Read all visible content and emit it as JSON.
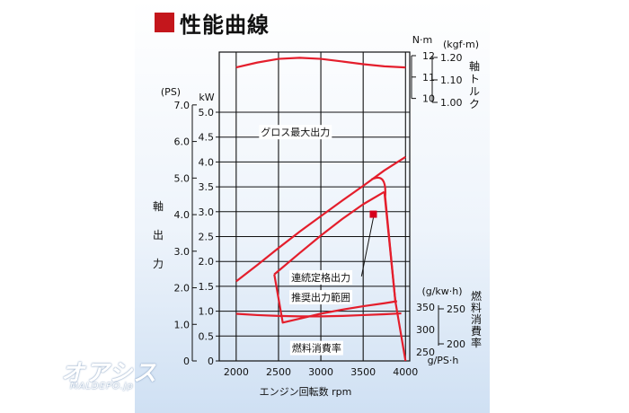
{
  "page_title": "性能曲線",
  "watermark": {
    "logo": "オアシス",
    "site": "MALDEPO.jp"
  },
  "chart_data": {
    "type": "line",
    "xlabel": "エンジン回転数 rpm",
    "xlim": [
      1800,
      4050
    ],
    "x_ticks": [
      2000,
      2500,
      3000,
      3500,
      4000
    ],
    "power_axis": {
      "ps_unit": "(PS)",
      "kw_unit": "kW",
      "label": "軸出力",
      "kw_range": [
        0,
        5.0
      ],
      "ps_ticks": [
        "0",
        "1.0",
        "2.0",
        "3.0",
        "4.0",
        "5.0",
        "6.0",
        "7.0"
      ],
      "kw_ticks": [
        "0",
        "0.5",
        "1.0",
        "1.5",
        "2.0",
        "2.5",
        "3.0",
        "3.5",
        "4.0",
        "4.5",
        "5.0"
      ]
    },
    "torque_axis": {
      "unit_nm": "N·m",
      "unit_kgfm": "(kgf·m)",
      "label": "軸トルク",
      "range": [
        9.9,
        12.0
      ],
      "nm_ticks": [
        "12",
        "11",
        "10"
      ],
      "kgfm_ticks": [
        "1.20",
        "1.10",
        "1.00"
      ]
    },
    "fuel_axis": {
      "unit_g_kwh": "(g/kw·h)",
      "unit_g_ps_h": "g/PS·h",
      "label": "燃料消費率",
      "range": [
        240,
        387
      ],
      "g_kwh_ticks": [
        "350",
        "300",
        "250"
      ],
      "g_ps_h_ticks": [
        "250",
        "200"
      ]
    },
    "series": [
      {
        "name": "グロス最大出力",
        "axis": "power",
        "x": [
          2000,
          2250,
          2500,
          2750,
          3000,
          3250,
          3500,
          3750,
          4000
        ],
        "y": [
          1.6,
          1.93,
          2.27,
          2.6,
          2.91,
          3.22,
          3.52,
          3.83,
          4.1
        ]
      },
      {
        "name": "連続定格出力",
        "axis": "power",
        "x": [
          2450,
          2750,
          3000,
          3250,
          3500,
          3750
        ],
        "y": [
          1.74,
          2.17,
          2.52,
          2.85,
          3.15,
          3.4
        ]
      },
      {
        "name": "推奨出力範囲",
        "axis": "power",
        "x": [
          2450,
          2550,
          2750,
          3000,
          3250,
          3500,
          3750,
          3900
        ],
        "y": [
          1.74,
          0.77,
          0.85,
          0.95,
          1.03,
          1.1,
          1.16,
          1.2
        ]
      },
      {
        "name": "torque",
        "axis": "torque",
        "x": [
          2000,
          2250,
          2500,
          2750,
          3000,
          3250,
          3500,
          3750,
          4000
        ],
        "y": [
          11.45,
          11.68,
          11.85,
          11.9,
          11.85,
          11.73,
          11.6,
          11.5,
          11.45
        ]
      },
      {
        "name": "燃料消費率",
        "axis": "fuel",
        "x": [
          2000,
          2250,
          2500,
          2750,
          3000,
          3250,
          3500,
          3750,
          3950
        ],
        "y": [
          346,
          343,
          341,
          340,
          340,
          341,
          343,
          345,
          347
        ]
      }
    ],
    "annotations": [
      {
        "text": "グロス最大出力",
        "x": 2700,
        "power_kw": 4.6
      },
      {
        "text": "連続定格出力",
        "x": 3000,
        "power_kw": 1.68
      },
      {
        "text": "推奨出力範囲",
        "x": 3000,
        "power_kw": 1.28
      },
      {
        "text": "燃料消費率",
        "x": 2950,
        "power_kw": 0.26
      }
    ],
    "rated_point": {
      "x": 3620,
      "power_kw": 2.95
    },
    "colors": {
      "curve": "#e41e2c",
      "marker": "#d6001c",
      "grid": "#111111",
      "title_square": "#c4161c"
    }
  }
}
